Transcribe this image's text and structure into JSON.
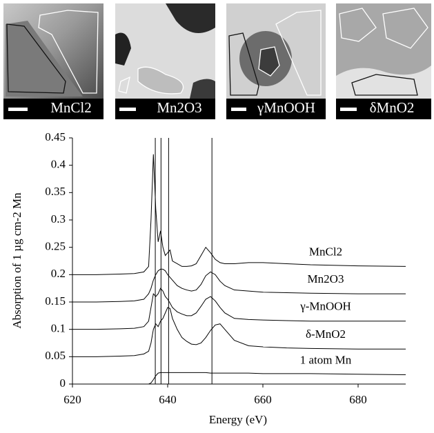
{
  "image_panels": [
    {
      "label": "MnCl2"
    },
    {
      "label": "Mn2O3"
    },
    {
      "label": "γMnOOH"
    },
    {
      "label": "δMnO2"
    }
  ],
  "chart_data": {
    "type": "line",
    "x_label": "Energy (eV)",
    "y_label": "Absorption of 1 µg cm-2 Mn",
    "xlim": [
      620,
      690
    ],
    "xticks": [
      620,
      640,
      660,
      680
    ],
    "ylim": [
      0,
      0.45
    ],
    "yticks": [
      0,
      0.05,
      0.1,
      0.15,
      0.2,
      0.25,
      0.3,
      0.35,
      0.4,
      0.45
    ],
    "reference_lines": [
      637.4,
      638.6,
      640.2,
      649.3
    ],
    "x": [
      620,
      625,
      630,
      633,
      635,
      636,
      636.5,
      637,
      637.5,
      638,
      638.5,
      639,
      639.5,
      640,
      640.5,
      641,
      642,
      643,
      644,
      645,
      646,
      647,
      648,
      649,
      650,
      651,
      652,
      654,
      657,
      660,
      665,
      670,
      680,
      690
    ],
    "series": [
      {
        "name": "MnCl2",
        "color": "#000000",
        "values": [
          0.2,
          0.2,
          0.201,
          0.202,
          0.205,
          0.215,
          0.3,
          0.42,
          0.32,
          0.26,
          0.28,
          0.25,
          0.235,
          0.24,
          0.245,
          0.225,
          0.22,
          0.215,
          0.215,
          0.216,
          0.22,
          0.235,
          0.25,
          0.24,
          0.228,
          0.222,
          0.22,
          0.22,
          0.222,
          0.222,
          0.22,
          0.218,
          0.216,
          0.215
        ]
      },
      {
        "name": "Mn2O3",
        "color": "#000000",
        "values": [
          0.15,
          0.15,
          0.151,
          0.152,
          0.155,
          0.165,
          0.175,
          0.19,
          0.2,
          0.207,
          0.21,
          0.21,
          0.207,
          0.2,
          0.195,
          0.19,
          0.18,
          0.175,
          0.172,
          0.17,
          0.172,
          0.182,
          0.198,
          0.205,
          0.2,
          0.188,
          0.18,
          0.172,
          0.17,
          0.168,
          0.167,
          0.166,
          0.165,
          0.165
        ]
      },
      {
        "name": "γ-MnOOH",
        "color": "#000000",
        "values": [
          0.1,
          0.1,
          0.101,
          0.102,
          0.105,
          0.115,
          0.14,
          0.165,
          0.16,
          0.165,
          0.175,
          0.17,
          0.16,
          0.155,
          0.148,
          0.14,
          0.132,
          0.128,
          0.125,
          0.125,
          0.13,
          0.142,
          0.155,
          0.16,
          0.152,
          0.14,
          0.13,
          0.12,
          0.118,
          0.117,
          0.116,
          0.115,
          0.115,
          0.115
        ]
      },
      {
        "name": "δ-MnO2",
        "color": "#000000",
        "values": [
          0.05,
          0.05,
          0.051,
          0.052,
          0.055,
          0.06,
          0.075,
          0.1,
          0.11,
          0.105,
          0.115,
          0.12,
          0.13,
          0.14,
          0.138,
          0.12,
          0.1,
          0.085,
          0.078,
          0.073,
          0.072,
          0.075,
          0.085,
          0.098,
          0.108,
          0.11,
          0.1,
          0.08,
          0.07,
          0.068,
          0.066,
          0.065,
          0.064,
          0.064
        ]
      },
      {
        "name": "1 atom Mn",
        "color": "#000000",
        "values": [
          0,
          0,
          0,
          0,
          0,
          0,
          0.002,
          0.008,
          0.015,
          0.02,
          0.021,
          0.021,
          0.021,
          0.021,
          0.021,
          0.021,
          0.021,
          0.021,
          0.021,
          0.021,
          0.021,
          0.021,
          0.021,
          0.02,
          0.02,
          0.02,
          0.02,
          0.02,
          0.02,
          0.019,
          0.019,
          0.019,
          0.018,
          0.017
        ]
      }
    ]
  }
}
